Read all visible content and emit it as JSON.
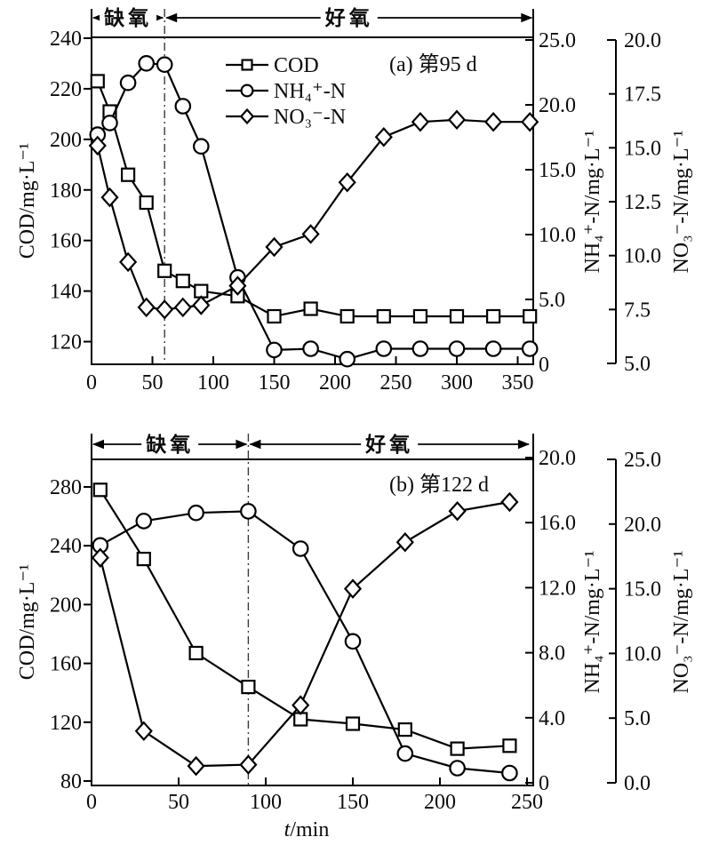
{
  "figure": {
    "xlabel": {
      "var": "t",
      "rest": "/min"
    },
    "legend": [
      {
        "marker": "square",
        "label": "COD"
      },
      {
        "marker": "circle",
        "label": "NH₄⁺-N"
      },
      {
        "marker": "diamond",
        "label": "NO₃⁻-N"
      }
    ],
    "line_color": "#000000",
    "marker_fill": "#ffffff",
    "background": "#ffffff"
  },
  "chart_data": {
    "type": "line",
    "charts": [
      {
        "id": "a",
        "title": "(a) 第95 d",
        "phases": [
          {
            "label": "缺氧",
            "start_min": 0,
            "end_min": 60
          },
          {
            "label": "好氧",
            "start_min": 60,
            "end_min": 363
          }
        ],
        "x_axis": {
          "label": "t/min",
          "min": 0,
          "max": 363,
          "ticks": [
            0,
            50,
            100,
            150,
            200,
            250,
            300,
            350
          ]
        },
        "y_axes": {
          "cod": {
            "label": "COD/mg·L⁻¹",
            "min": 111,
            "max": 240,
            "tick_values": [
              240,
              220,
              200,
              180,
              160,
              140,
              120
            ],
            "tick_labels": [
              "240",
              "220",
              "200",
              "180",
              "160",
              "140",
              "120"
            ]
          },
          "nh4": {
            "label": "NH₄⁺-N/mg·L⁻¹",
            "min": 0,
            "max": 25,
            "tick_values": [
              25,
              20,
              15,
              10,
              5,
              0
            ],
            "tick_labels": [
              "25.0",
              "20.0",
              "15.0",
              "10.0",
              "5.0",
              "0"
            ]
          },
          "no3": {
            "label": "NO₃⁻-N/mg·L⁻¹",
            "min": 5,
            "max": 20,
            "tick_values": [
              20,
              17.5,
              15,
              12.5,
              10,
              7.5,
              5
            ],
            "tick_labels": [
              "20.0",
              "17.5",
              "15.0",
              "12.5",
              "10.0",
              "7.5",
              "5.0"
            ]
          }
        },
        "t_min": [
          5,
          15,
          30,
          45,
          60,
          75,
          90,
          120,
          150,
          180,
          210,
          240,
          270,
          300,
          330,
          360
        ],
        "series": [
          {
            "name": "COD",
            "axis": "cod",
            "marker": "square",
            "values": [
              223,
              211,
              186,
              175,
              148,
              144,
              140,
              138,
              130,
              133,
              130,
              130,
              130,
              130,
              130,
              130
            ]
          },
          {
            "name": "NH₄⁺-N",
            "axis": "nh4",
            "marker": "circle",
            "values": [
              17.7,
              18.6,
              21.7,
              23.2,
              23.1,
              19.9,
              16.8,
              6.7,
              1.1,
              1.2,
              0.4,
              1.2,
              1.2,
              1.2,
              1.2,
              1.2
            ]
          },
          {
            "name": "NO₃⁻-N",
            "axis": "no3",
            "marker": "diamond",
            "values": [
              15.1,
              12.7,
              9.7,
              7.6,
              7.5,
              7.6,
              7.7,
              8.6,
              10.4,
              11.0,
              13.4,
              15.5,
              16.2,
              16.3,
              16.2,
              16.2
            ]
          }
        ]
      },
      {
        "id": "b",
        "title": "(b) 第122 d",
        "phases": [
          {
            "label": "缺氧",
            "start_min": 0,
            "end_min": 90
          },
          {
            "label": "好氧",
            "start_min": 90,
            "end_min": 252
          }
        ],
        "x_axis": {
          "label": "t/min",
          "min": 0,
          "max": 252,
          "ticks": [
            0,
            50,
            100,
            150,
            200,
            250
          ]
        },
        "y_axes": {
          "cod": {
            "label": "COD/mg·L⁻¹",
            "min": 79,
            "max": 297,
            "tick_values": [
              280,
              240,
              200,
              160,
              120,
              80
            ],
            "tick_labels": [
              "280",
              "240",
              "200",
              "160",
              "120",
              "80"
            ]
          },
          "nh4": {
            "label": "NH₄⁺-N/mg·L⁻¹",
            "min": 0,
            "max": 20,
            "tick_values": [
              20,
              16,
              12,
              8,
              4,
              0
            ],
            "tick_labels": [
              "20.0",
              "16.0",
              "12.0",
              "8.0",
              "4.0",
              "0"
            ]
          },
          "no3": {
            "label": "NO₃⁻-N/mg·L⁻¹",
            "min": 0,
            "max": 25,
            "tick_values": [
              25,
              20,
              15,
              10,
              5,
              0
            ],
            "tick_labels": [
              "25.0",
              "20.0",
              "15.0",
              "10.0",
              "5.0",
              "0.0"
            ]
          }
        },
        "t_min": [
          5,
          30,
          60,
          90,
          120,
          150,
          180,
          210,
          240
        ],
        "series": [
          {
            "name": "COD",
            "axis": "cod",
            "marker": "square",
            "values": [
              278,
              231,
              167,
              144,
              122,
              119,
              115,
              102,
              104
            ]
          },
          {
            "name": "NH₄⁺-N",
            "axis": "nh4",
            "marker": "circle",
            "values": [
              14.6,
              16.1,
              16.6,
              16.7,
              14.4,
              8.7,
              1.8,
              0.9,
              0.6
            ]
          },
          {
            "name": "NO₃⁻-N",
            "axis": "no3",
            "marker": "diamond",
            "values": [
              17.4,
              4.0,
              1.3,
              1.4,
              6.0,
              15.0,
              18.6,
              21.0,
              21.7
            ]
          }
        ]
      }
    ]
  }
}
